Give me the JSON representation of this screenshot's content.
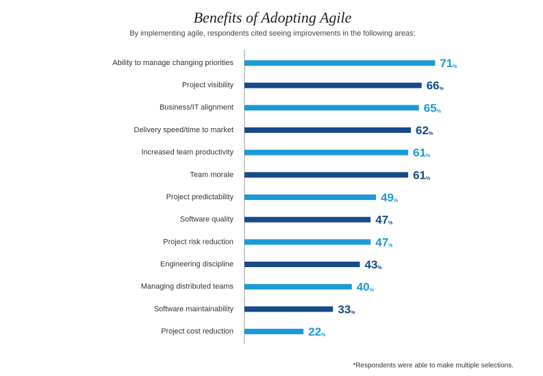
{
  "chart_data": {
    "type": "bar",
    "orientation": "horizontal",
    "title": "Benefits of Adopting Agile",
    "subtitle": "By implementing agile, respondents cited seeing improvements in the following areas:",
    "categories": [
      "Ability to manage changing priorities",
      "Project visibility",
      "Business/IT alignment",
      "Delivery speed/time to market",
      "Increased team productivity",
      "Team morale",
      "Project predictability",
      "Software quality",
      "Project risk reduction",
      "Engineering discipline",
      "Managing distributed teams",
      "Software maintainability",
      "Project cost reduction"
    ],
    "values": [
      71,
      66,
      65,
      62,
      61,
      61,
      49,
      47,
      47,
      43,
      40,
      33,
      22
    ],
    "unit": "%",
    "colors": [
      "#1a9ad6",
      "#164a8a",
      "#1a9ad6",
      "#164a8a",
      "#1a9ad6",
      "#164a8a",
      "#1a9ad6",
      "#164a8a",
      "#1a9ad6",
      "#164a8a",
      "#1a9ad6",
      "#164a8a",
      "#1a9ad6"
    ],
    "footnote": "*Respondents were able to make multiple selections."
  }
}
